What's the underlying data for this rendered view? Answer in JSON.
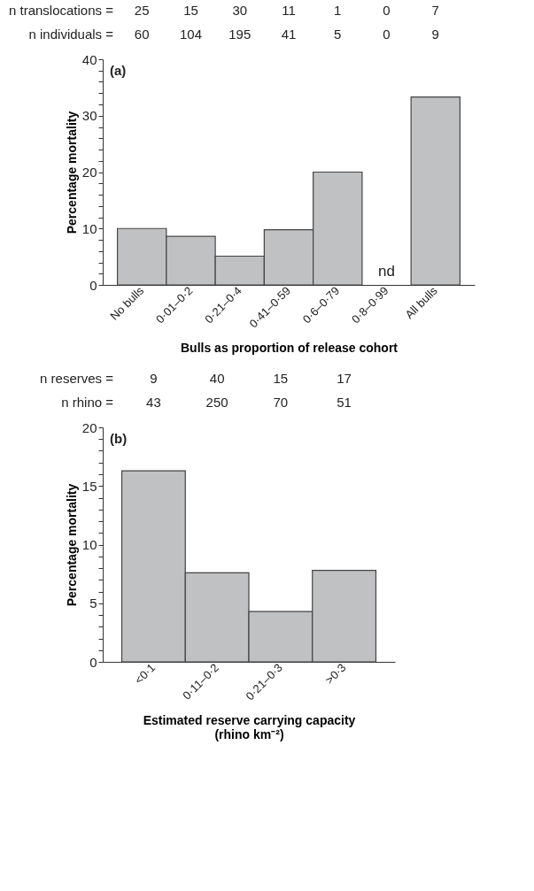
{
  "chart_data": [
    {
      "type": "bar",
      "title": "(a)",
      "xlabel": "Bulls as proportion of release cohort",
      "ylabel": "Percentage mortality",
      "categories": [
        "No bulls",
        "0·01–0·2",
        "0·21–0·4",
        "0·41–0·59",
        "0·6–0·79",
        "0·8–0·99",
        "All bulls"
      ],
      "series": [
        {
          "color": "#c0c1c3",
          "values": [
            10,
            8.6,
            5.1,
            9.8,
            20,
            null,
            33.3
          ]
        }
      ],
      "ylim": [
        0,
        40
      ],
      "yticks": [
        0,
        {
          "value": 2,
          "label": null
        },
        {
          "value": 4,
          "label": null
        },
        {
          "value": 6,
          "label": null
        },
        {
          "value": 8,
          "label": null
        },
        10,
        {
          "value": 12,
          "label": null
        },
        {
          "value": 14,
          "label": null
        },
        {
          "value": 16,
          "label": null
        },
        {
          "value": 18,
          "label": null
        },
        20,
        {
          "value": 22,
          "label": null
        },
        {
          "value": 24,
          "label": null
        },
        {
          "value": 26,
          "label": null
        },
        {
          "value": 28,
          "label": null
        },
        30,
        {
          "value": 32,
          "label": null
        },
        {
          "value": 34,
          "label": null
        },
        {
          "value": 36,
          "label": null
        },
        {
          "value": 38,
          "label": null
        },
        40
      ],
      "grid": false,
      "annotations": [
        "n translocations =",
        "25",
        "15",
        "30",
        "11",
        "1",
        "0",
        "7",
        "n individuals =",
        "60",
        "104",
        "195",
        "41",
        "5",
        "0",
        "9",
        "nd"
      ]
    },
    {
      "type": "bar",
      "title": "(b)",
      "xlabel": "Estimated reserve carrying capacity\n(rhino km⁻²)",
      "ylabel": "Percentage mortality",
      "categories": [
        "<0·1",
        "0·11–0·2",
        "0·21–0·3",
        ">0·3"
      ],
      "series": [
        {
          "color": "#c0c1c3",
          "values": [
            16.3,
            7.6,
            4.3,
            7.8
          ]
        }
      ],
      "ylim": [
        0,
        20
      ],
      "yticks": [
        0,
        {
          "value": 1,
          "label": null
        },
        {
          "value": 2,
          "label": null
        },
        {
          "value": 3,
          "label": null
        },
        {
          "value": 4,
          "label": null
        },
        5,
        {
          "value": 6,
          "label": null
        },
        {
          "value": 7,
          "label": null
        },
        {
          "value": 8,
          "label": null
        },
        {
          "value": 9,
          "label": null
        },
        10,
        {
          "value": 11,
          "label": null
        },
        {
          "value": 12,
          "label": null
        },
        {
          "value": 13,
          "label": null
        },
        {
          "value": 14,
          "label": null
        },
        15,
        {
          "value": 16,
          "label": null
        },
        {
          "value": 17,
          "label": null
        },
        {
          "value": 18,
          "label": null
        },
        {
          "value": 19,
          "label": null
        },
        20
      ],
      "grid": false,
      "annotations": [
        "n reserves =",
        "9",
        "40",
        "15",
        "17",
        "n rhino =",
        "43",
        "250",
        "70",
        "51"
      ]
    }
  ]
}
